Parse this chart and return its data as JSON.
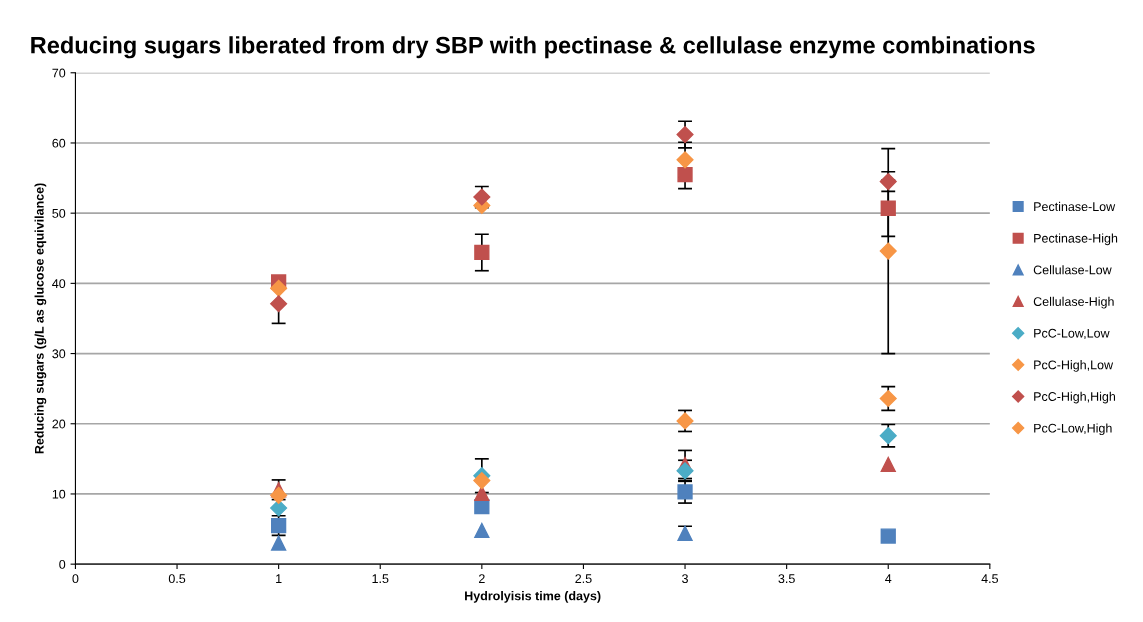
{
  "chart_data": {
    "type": "scatter",
    "title": "Reducing sugars liberated from dry SBP with pectinase & cellulase enzyme combinations",
    "xlabel": "Hydrolyisis time (days)",
    "ylabel": "Reducing sugars (g/L as glucose equivilance)",
    "xlim": [
      0,
      4.5
    ],
    "xticks": [
      0,
      0.5,
      1,
      1.5,
      2,
      2.5,
      3,
      3.5,
      4,
      4.5
    ],
    "ylim": [
      0,
      70
    ],
    "yticks": [
      0,
      10,
      20,
      30,
      40,
      50,
      60,
      70
    ],
    "grid": "y",
    "legend": "right",
    "series": [
      {
        "name": "Pectinase-Low",
        "color": "#4f81bd",
        "marker": "square",
        "x": [
          1,
          2,
          3,
          4
        ],
        "values": [
          5.5,
          8.2,
          10.3,
          4.0
        ],
        "errors": [
          1.4,
          null,
          1.6,
          null
        ]
      },
      {
        "name": "Pectinase-High",
        "color": "#c0504d",
        "marker": "square",
        "x": [
          1,
          2,
          3,
          4
        ],
        "values": [
          40.2,
          44.4,
          55.5,
          50.7
        ],
        "errors": [
          null,
          2.6,
          2.0,
          4.0
        ]
      },
      {
        "name": "Cellulase-Low",
        "color": "#4f81bd",
        "marker": "triangle",
        "x": [
          1,
          2,
          3
        ],
        "values": [
          3.0,
          4.8,
          4.4
        ],
        "errors": [
          null,
          null,
          1.0
        ]
      },
      {
        "name": "Cellulase-High",
        "color": "#c0504d",
        "marker": "triangle",
        "x": [
          1,
          2,
          3,
          4
        ],
        "values": [
          10.6,
          10.1,
          14.2,
          14.2
        ],
        "errors": [
          1.4,
          null,
          2.0,
          null
        ]
      },
      {
        "name": "PcC-Low,Low",
        "color": "#4bacc6",
        "marker": "diamond",
        "x": [
          1,
          2,
          3,
          4
        ],
        "values": [
          8.0,
          12.6,
          13.3,
          18.3
        ],
        "errors": [
          null,
          2.4,
          1.5,
          1.6
        ]
      },
      {
        "name": "PcC-High,Low",
        "color": "#f79646",
        "marker": "diamond",
        "x": [
          1,
          2,
          3,
          4
        ],
        "values": [
          39.3,
          51.1,
          57.6,
          44.6
        ],
        "errors": [
          null,
          null,
          2.5,
          14.6
        ]
      },
      {
        "name": "PcC-High,High",
        "color": "#c0504d",
        "marker": "diamond",
        "x": [
          1,
          2,
          3,
          4
        ],
        "values": [
          37.1,
          52.3,
          61.2,
          54.5
        ],
        "errors": [
          2.8,
          1.5,
          1.9,
          1.4
        ]
      },
      {
        "name": "PcC-Low,High",
        "color": "#f79646",
        "marker": "diamond",
        "x": [
          1,
          2,
          3,
          4
        ],
        "values": [
          9.8,
          11.9,
          20.4,
          23.6
        ],
        "errors": [
          null,
          null,
          1.5,
          1.7
        ]
      }
    ]
  }
}
